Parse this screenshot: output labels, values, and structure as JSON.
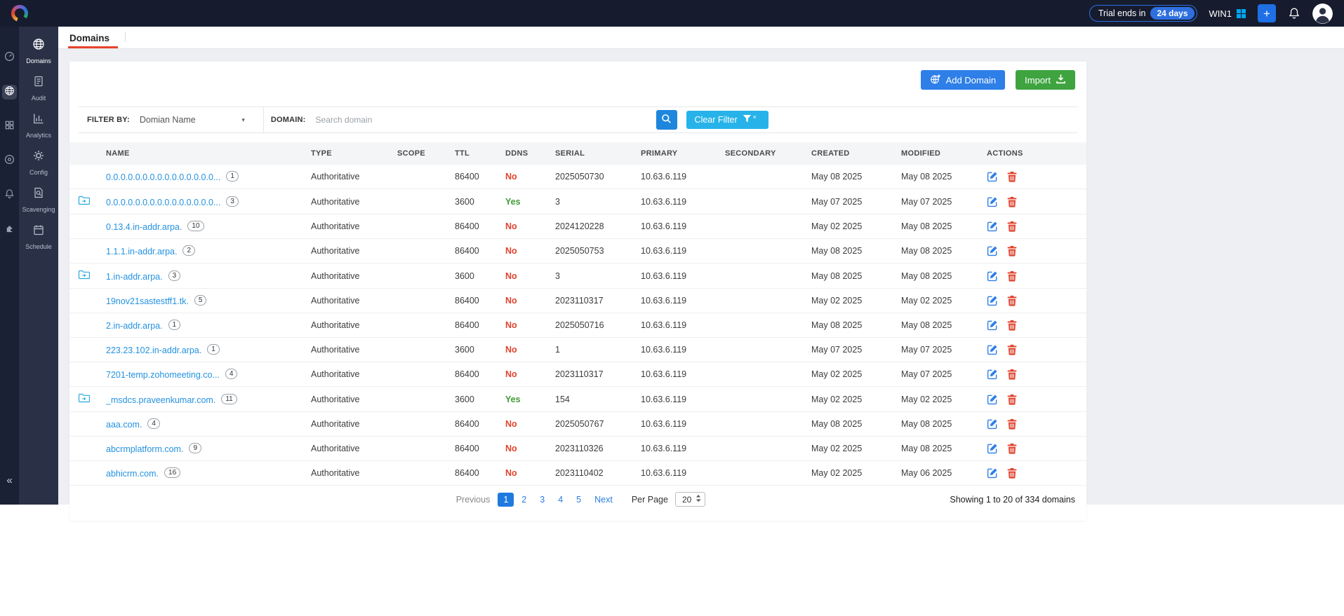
{
  "colors": {
    "topbar_bg": "#161c2e",
    "rail_bg": "#1a2135",
    "sidebar_bg": "#2a3146",
    "main_bg": "#edeff3",
    "accent_blue": "#2e7fe8",
    "accent_green": "#3fa43f",
    "link_blue": "#2492e0",
    "danger_red": "#e0432d",
    "success_green": "#3f9c35",
    "clear_filter_blue": "#27b3e9",
    "tab_underline_red": "#e8432d",
    "windows_icon_blue": "#00a4ef"
  },
  "topbar": {
    "trial_prefix": "Trial ends in",
    "trial_days": "24 days",
    "server_name": "WIN1",
    "plus_label": "+",
    "icons": [
      "app-logo-icon",
      "windows-icon",
      "notifications-bell-icon",
      "user-avatar"
    ]
  },
  "rail": {
    "items": [
      {
        "icon": "gauge-icon",
        "active": false
      },
      {
        "icon": "globe-icon",
        "active": true
      },
      {
        "icon": "grid-icon",
        "active": false
      },
      {
        "icon": "disc-icon",
        "active": false
      },
      {
        "icon": "bell-icon",
        "active": false
      },
      {
        "icon": "puzzle-icon",
        "active": false
      }
    ],
    "collapse_label": "«"
  },
  "sidebar": {
    "items": [
      {
        "label": "Domains",
        "icon": "globe-icon",
        "active": true
      },
      {
        "label": "Audit",
        "icon": "audit-icon",
        "active": false
      },
      {
        "label": "Analytics",
        "icon": "analytics-icon",
        "active": false
      },
      {
        "label": "Config",
        "icon": "config-gear-icon",
        "active": false
      },
      {
        "label": "Scavenging",
        "icon": "scavenging-icon",
        "active": false
      },
      {
        "label": "Schedule",
        "icon": "schedule-icon",
        "active": false
      }
    ]
  },
  "tabs": [
    {
      "label": "Domains",
      "active": true
    }
  ],
  "actions": {
    "add_domain": "Add Domain",
    "import": "Import"
  },
  "filter": {
    "filter_by_label": "FILTER BY:",
    "filter_by_value": "Domian Name",
    "domain_label": "DOMAIN:",
    "search_placeholder": "Search domain",
    "clear_filter": "Clear Filter"
  },
  "table": {
    "columns": [
      "NAME",
      "TYPE",
      "SCOPE",
      "TTL",
      "DDNS",
      "SERIAL",
      "PRIMARY",
      "SECONDARY",
      "CREATED",
      "MODIFIED",
      "ACTIONS"
    ],
    "rows": [
      {
        "name": "0.0.0.0.0.0.0.0.0.0.0.0.0.0.0...",
        "count": "1",
        "transfer": false,
        "type": "Authoritative",
        "scope": "",
        "ttl": "86400",
        "ddns": "No",
        "serial": "2025050730",
        "primary": "10.63.6.119",
        "secondary": "",
        "created": "May 08 2025",
        "modified": "May 08 2025"
      },
      {
        "name": "0.0.0.0.0.0.0.0.0.0.0.0.0.0.0...",
        "count": "3",
        "transfer": true,
        "type": "Authoritative",
        "scope": "",
        "ttl": "3600",
        "ddns": "Yes",
        "serial": "3",
        "primary": "10.63.6.119",
        "secondary": "",
        "created": "May 07 2025",
        "modified": "May 07 2025"
      },
      {
        "name": "0.13.4.in-addr.arpa.",
        "count": "10",
        "transfer": false,
        "type": "Authoritative",
        "scope": "",
        "ttl": "86400",
        "ddns": "No",
        "serial": "2024120228",
        "primary": "10.63.6.119",
        "secondary": "",
        "created": "May 02 2025",
        "modified": "May 08 2025"
      },
      {
        "name": "1.1.1.in-addr.arpa.",
        "count": "2",
        "transfer": false,
        "type": "Authoritative",
        "scope": "",
        "ttl": "86400",
        "ddns": "No",
        "serial": "2025050753",
        "primary": "10.63.6.119",
        "secondary": "",
        "created": "May 08 2025",
        "modified": "May 08 2025"
      },
      {
        "name": "1.in-addr.arpa.",
        "count": "3",
        "transfer": true,
        "type": "Authoritative",
        "scope": "",
        "ttl": "3600",
        "ddns": "No",
        "serial": "3",
        "primary": "10.63.6.119",
        "secondary": "",
        "created": "May 08 2025",
        "modified": "May 08 2025"
      },
      {
        "name": "19nov21sastestff1.tk.",
        "count": "5",
        "transfer": false,
        "type": "Authoritative",
        "scope": "",
        "ttl": "86400",
        "ddns": "No",
        "serial": "2023110317",
        "primary": "10.63.6.119",
        "secondary": "",
        "created": "May 02 2025",
        "modified": "May 02 2025"
      },
      {
        "name": "2.in-addr.arpa.",
        "count": "1",
        "transfer": false,
        "type": "Authoritative",
        "scope": "",
        "ttl": "86400",
        "ddns": "No",
        "serial": "2025050716",
        "primary": "10.63.6.119",
        "secondary": "",
        "created": "May 08 2025",
        "modified": "May 08 2025"
      },
      {
        "name": "223.23.102.in-addr.arpa.",
        "count": "1",
        "transfer": false,
        "type": "Authoritative",
        "scope": "",
        "ttl": "3600",
        "ddns": "No",
        "serial": "1",
        "primary": "10.63.6.119",
        "secondary": "",
        "created": "May 07 2025",
        "modified": "May 07 2025"
      },
      {
        "name": "7201-temp.zohomeeting.co...",
        "count": "4",
        "transfer": false,
        "type": "Authoritative",
        "scope": "",
        "ttl": "86400",
        "ddns": "No",
        "serial": "2023110317",
        "primary": "10.63.6.119",
        "secondary": "",
        "created": "May 02 2025",
        "modified": "May 07 2025"
      },
      {
        "name": "_msdcs.praveenkumar.com.",
        "count": "11",
        "transfer": true,
        "type": "Authoritative",
        "scope": "",
        "ttl": "3600",
        "ddns": "Yes",
        "serial": "154",
        "primary": "10.63.6.119",
        "secondary": "",
        "created": "May 02 2025",
        "modified": "May 02 2025"
      },
      {
        "name": "aaa.com.",
        "count": "4",
        "transfer": false,
        "type": "Authoritative",
        "scope": "",
        "ttl": "86400",
        "ddns": "No",
        "serial": "2025050767",
        "primary": "10.63.6.119",
        "secondary": "",
        "created": "May 08 2025",
        "modified": "May 08 2025"
      },
      {
        "name": "abcrmplatform.com.",
        "count": "9",
        "transfer": false,
        "type": "Authoritative",
        "scope": "",
        "ttl": "86400",
        "ddns": "No",
        "serial": "2023110326",
        "primary": "10.63.6.119",
        "secondary": "",
        "created": "May 02 2025",
        "modified": "May 08 2025"
      },
      {
        "name": "abhicrm.com.",
        "count": "16",
        "transfer": false,
        "type": "Authoritative",
        "scope": "",
        "ttl": "86400",
        "ddns": "No",
        "serial": "2023110402",
        "primary": "10.63.6.119",
        "secondary": "",
        "created": "May 02 2025",
        "modified": "May 06 2025"
      }
    ]
  },
  "pagination": {
    "previous": "Previous",
    "pages": [
      "1",
      "2",
      "3",
      "4",
      "5"
    ],
    "active_page": "1",
    "next": "Next",
    "per_page_label": "Per Page",
    "per_page_value": "20",
    "summary": "Showing 1 to 20 of 334 domains"
  }
}
